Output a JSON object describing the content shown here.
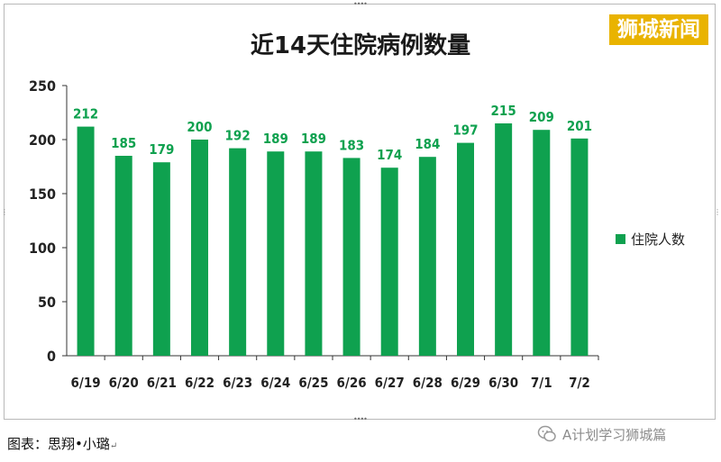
{
  "brand": {
    "label": "狮城新闻",
    "color": "#e9b300"
  },
  "caption": {
    "text": "图表：思翔•小璐",
    "return_mark": "↵"
  },
  "source": {
    "text": "A计划学习狮城篇",
    "icon": "wechat-icon"
  },
  "chart_data": {
    "type": "bar",
    "title": "近14天住院病例数量",
    "categories": [
      "6/19",
      "6/20",
      "6/21",
      "6/22",
      "6/23",
      "6/24",
      "6/25",
      "6/26",
      "6/27",
      "6/28",
      "6/29",
      "6/30",
      "7/1",
      "7/2"
    ],
    "series": [
      {
        "name": "住院人数",
        "values": [
          212,
          185,
          179,
          200,
          192,
          189,
          189,
          183,
          174,
          184,
          197,
          215,
          209,
          201
        ],
        "color": "#0fa14f"
      }
    ],
    "data_labels": [
      "212",
      "185",
      "179",
      "200",
      "192",
      "189",
      "189",
      "183",
      "174",
      "184",
      "197",
      "215",
      "209",
      "201"
    ],
    "yticks": [
      "0",
      "50",
      "100",
      "150",
      "200",
      "250"
    ],
    "ylim": [
      0,
      250
    ],
    "grid": false,
    "legend": {
      "position": "right",
      "label": "住院人数"
    }
  }
}
